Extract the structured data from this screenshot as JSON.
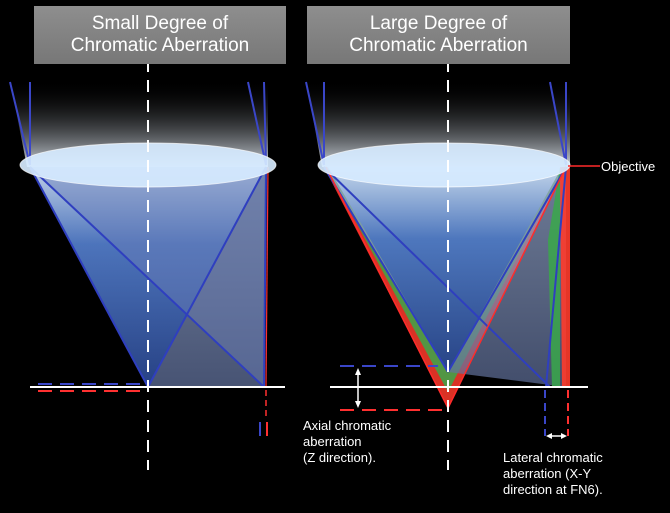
{
  "panels": {
    "left": {
      "title_line1": "Small Degree of",
      "title_line2": "Chromatic Aberration"
    },
    "right": {
      "title_line1": "Large Degree of",
      "title_line2": "Chromatic Aberration"
    }
  },
  "labels": {
    "objective": "Objective",
    "axial": [
      "Axial chromatic",
      "aberration",
      "(Z direction)."
    ],
    "lateral": [
      "Lateral chromatic",
      "aberration (X-Y",
      "direction at FN6)."
    ]
  },
  "colors": {
    "background": "#000000",
    "title_box": "#808080",
    "lens": "#d8ecff",
    "cone_blue": "#3a5fb0",
    "ray_blue": "#2f3fbf",
    "ray_red": "#ff2b2b",
    "ray_green": "#3aa84a",
    "axis": "#ffffff"
  }
}
